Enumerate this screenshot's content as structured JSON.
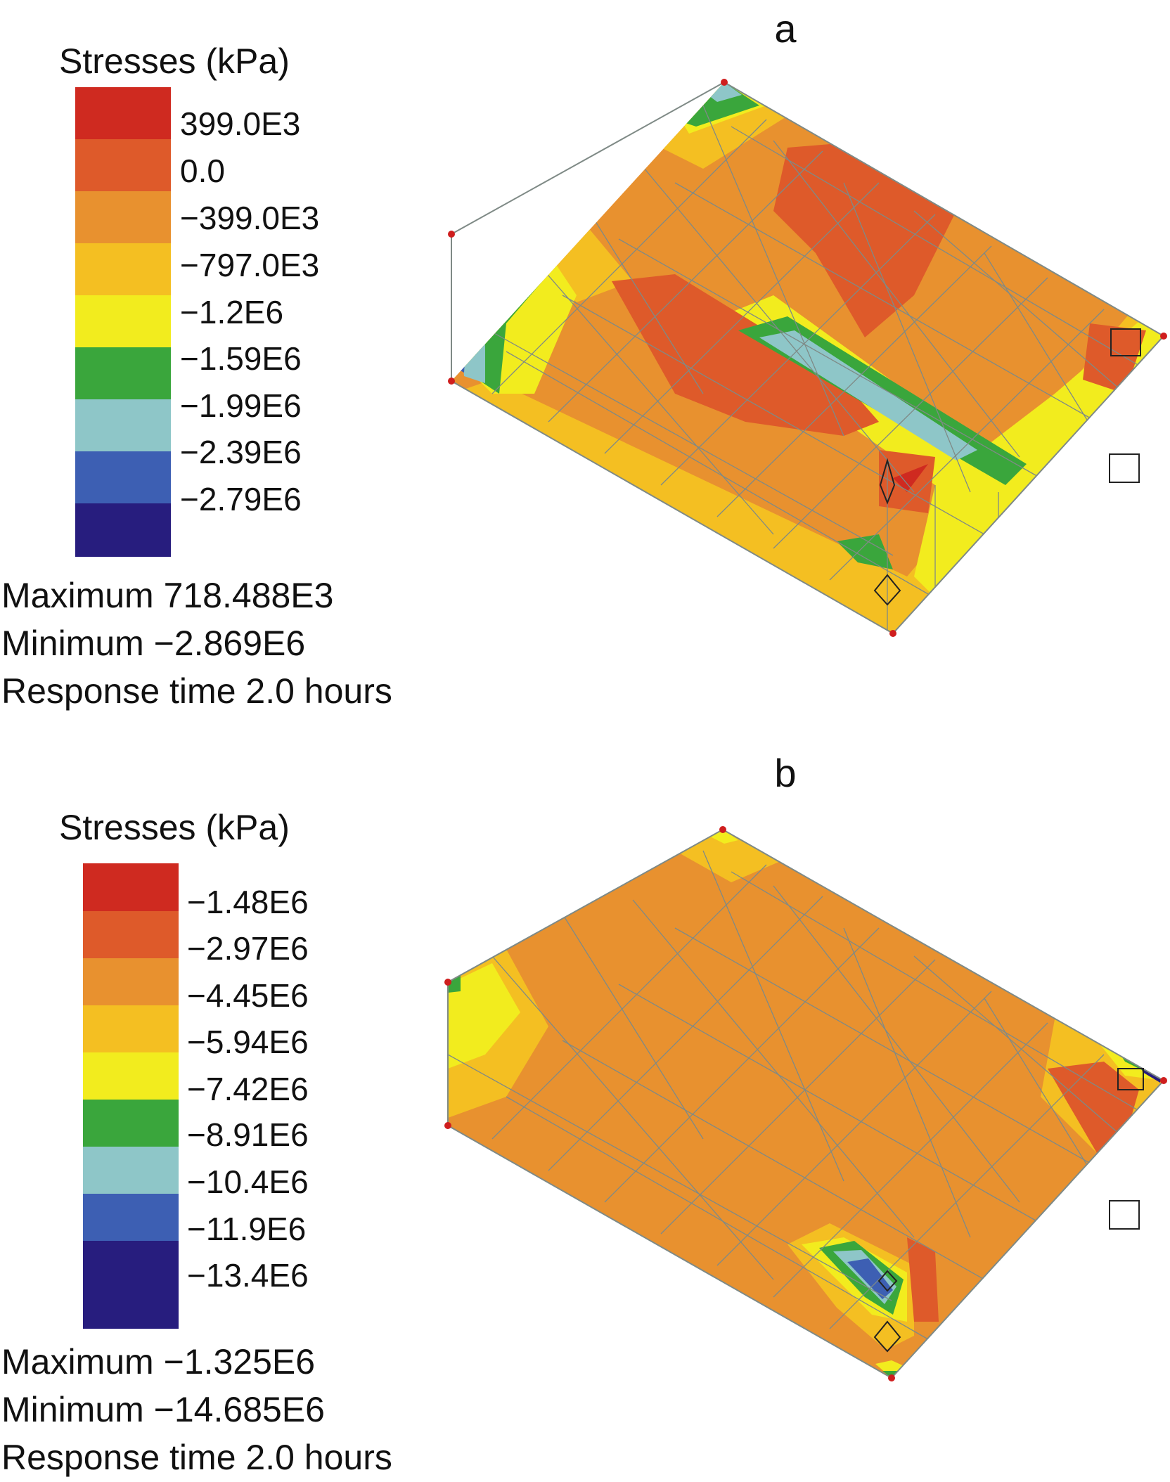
{
  "colors": {
    "red": "#cf2a20",
    "red_orange": "#de5a2a",
    "orange": "#e8912f",
    "yellow_orange": "#f4bf22",
    "yellow": "#f2ec1e",
    "green": "#3aa63c",
    "light_blue": "#8ec6c8",
    "blue": "#3d5fb3",
    "navy": "#271d7e",
    "mesh_line": "#7f8a86",
    "node": "#cf1e1e"
  },
  "panel_a": {
    "label": "a",
    "legend_title": "Stresses (kPa)",
    "bands": [
      "red",
      "red_orange",
      "orange",
      "yellow_orange",
      "yellow",
      "green",
      "light_blue",
      "blue",
      "navy"
    ],
    "ticks": [
      "399.0E3",
      "0.0",
      "−399.0E3",
      "−797.0E3",
      "−1.2E6",
      "−1.59E6",
      "−1.99E6",
      "−2.39E6",
      "−2.79E6"
    ],
    "maximum": "Maximum 718.488E3",
    "minimum": "Minimum −2.869E6",
    "response_time": "Response time 2.0 hours"
  },
  "panel_b": {
    "label": "b",
    "legend_title": "Stresses (kPa)",
    "bands": [
      "red",
      "red_orange",
      "orange",
      "yellow_orange",
      "yellow",
      "green",
      "light_blue",
      "blue",
      "navy"
    ],
    "ticks": [
      "−1.48E6",
      "−2.97E6",
      "−4.45E6",
      "−5.94E6",
      "−7.42E6",
      "−8.91E6",
      "−10.4E6",
      "−11.9E6",
      "−13.4E6"
    ],
    "maximum": "Maximum −1.325E6",
    "minimum": "Minimum −14.685E6",
    "response_time": "Response time 2.0 hours"
  }
}
